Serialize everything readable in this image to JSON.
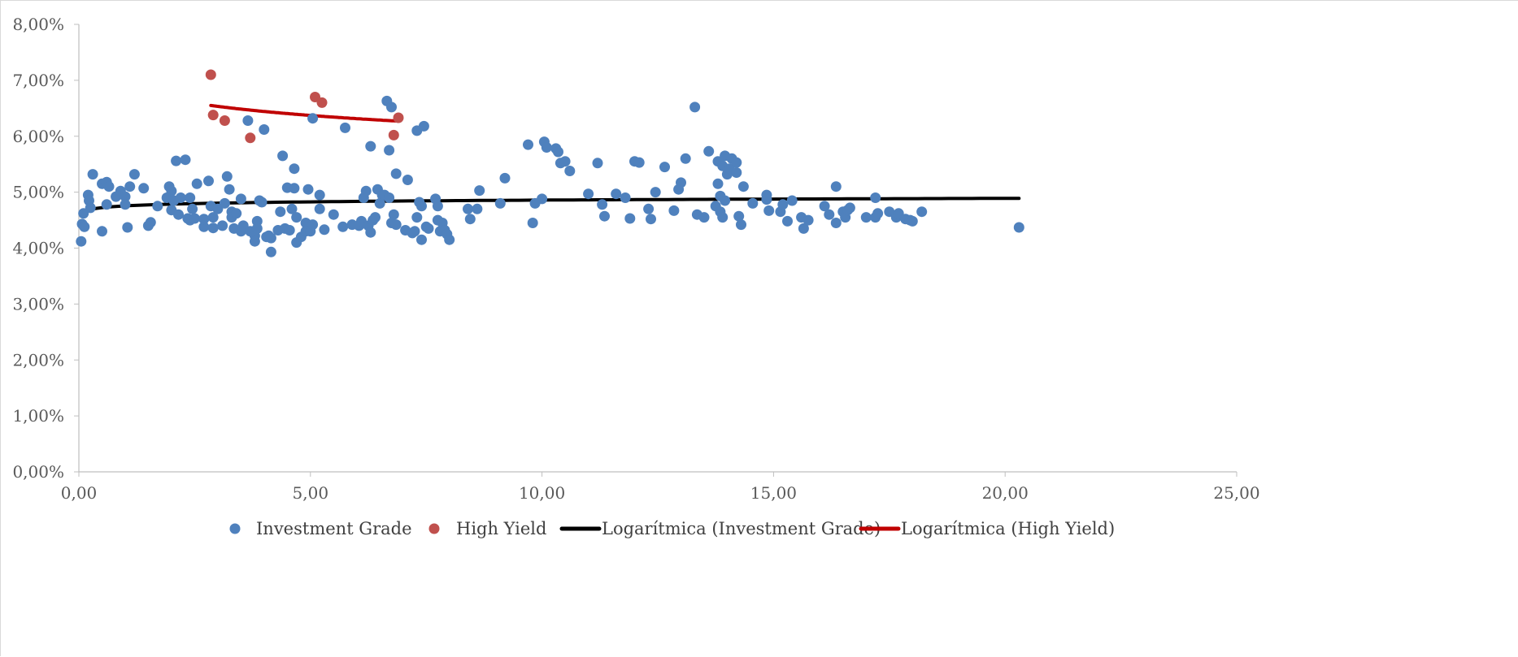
{
  "chart_data": {
    "type": "scatter",
    "title": "",
    "xlabel": "",
    "ylabel": "",
    "xlim": [
      0,
      25
    ],
    "ylim": [
      0,
      8
    ],
    "x_ticks": [
      "0,00",
      "5,00",
      "10,00",
      "15,00",
      "20,00",
      "25,00"
    ],
    "y_ticks": [
      "0,00%",
      "1,00%",
      "2,00%",
      "3,00%",
      "4,00%",
      "5,00%",
      "6,00%",
      "7,00%",
      "8,00%"
    ],
    "grid": false,
    "legend_position": "bottom",
    "series": [
      {
        "name": "Investment Grade",
        "color": "#4f81bd",
        "points": [
          [
            0.05,
            4.12
          ],
          [
            0.07,
            4.43
          ],
          [
            0.1,
            4.62
          ],
          [
            0.12,
            4.38
          ],
          [
            0.2,
            4.95
          ],
          [
            0.22,
            4.85
          ],
          [
            0.25,
            4.72
          ],
          [
            0.3,
            5.32
          ],
          [
            0.5,
            4.3
          ],
          [
            0.5,
            5.15
          ],
          [
            0.6,
            5.18
          ],
          [
            0.6,
            4.78
          ],
          [
            0.65,
            5.1
          ],
          [
            0.8,
            4.92
          ],
          [
            0.9,
            5.02
          ],
          [
            1.0,
            4.92
          ],
          [
            1.0,
            4.78
          ],
          [
            1.05,
            4.37
          ],
          [
            1.1,
            5.1
          ],
          [
            1.2,
            5.32
          ],
          [
            1.4,
            5.07
          ],
          [
            1.5,
            4.4
          ],
          [
            1.55,
            4.46
          ],
          [
            1.7,
            4.75
          ],
          [
            1.9,
            4.9
          ],
          [
            1.95,
            5.1
          ],
          [
            2.0,
            5.02
          ],
          [
            2.0,
            4.68
          ],
          [
            2.05,
            4.85
          ],
          [
            2.1,
            5.56
          ],
          [
            2.15,
            4.6
          ],
          [
            2.2,
            4.9
          ],
          [
            2.3,
            5.58
          ],
          [
            2.35,
            4.53
          ],
          [
            2.4,
            4.5
          ],
          [
            2.4,
            4.9
          ],
          [
            2.45,
            4.7
          ],
          [
            2.5,
            4.53
          ],
          [
            2.55,
            5.15
          ],
          [
            2.7,
            4.38
          ],
          [
            2.7,
            4.52
          ],
          [
            2.8,
            5.2
          ],
          [
            2.85,
            4.75
          ],
          [
            2.9,
            4.36
          ],
          [
            2.9,
            4.55
          ],
          [
            3.0,
            4.7
          ],
          [
            3.1,
            4.4
          ],
          [
            3.15,
            4.8
          ],
          [
            3.2,
            5.28
          ],
          [
            3.25,
            5.05
          ],
          [
            3.3,
            4.65
          ],
          [
            3.3,
            4.55
          ],
          [
            3.35,
            4.35
          ],
          [
            3.4,
            4.62
          ],
          [
            3.5,
            4.3
          ],
          [
            3.5,
            4.88
          ],
          [
            3.55,
            4.4
          ],
          [
            3.65,
            6.28
          ],
          [
            3.7,
            4.3
          ],
          [
            3.8,
            4.22
          ],
          [
            3.8,
            4.12
          ],
          [
            3.85,
            4.48
          ],
          [
            3.85,
            4.35
          ],
          [
            3.9,
            4.85
          ],
          [
            3.95,
            4.82
          ],
          [
            4.0,
            6.12
          ],
          [
            4.05,
            4.2
          ],
          [
            4.1,
            4.22
          ],
          [
            4.15,
            4.18
          ],
          [
            4.15,
            3.93
          ],
          [
            4.3,
            4.32
          ],
          [
            4.35,
            4.65
          ],
          [
            4.4,
            5.65
          ],
          [
            4.45,
            4.35
          ],
          [
            4.5,
            5.08
          ],
          [
            4.55,
            4.32
          ],
          [
            4.6,
            4.7
          ],
          [
            4.65,
            5.42
          ],
          [
            4.65,
            5.07
          ],
          [
            4.7,
            4.55
          ],
          [
            4.7,
            4.1
          ],
          [
            4.8,
            4.2
          ],
          [
            4.9,
            4.45
          ],
          [
            4.9,
            4.3
          ],
          [
            4.95,
            5.05
          ],
          [
            5.0,
            4.3
          ],
          [
            5.05,
            4.42
          ],
          [
            5.05,
            6.32
          ],
          [
            5.2,
            4.7
          ],
          [
            5.2,
            4.95
          ],
          [
            5.3,
            4.33
          ],
          [
            5.5,
            4.6
          ],
          [
            5.7,
            4.38
          ],
          [
            5.75,
            6.15
          ],
          [
            5.9,
            4.42
          ],
          [
            6.05,
            4.4
          ],
          [
            6.1,
            4.48
          ],
          [
            6.15,
            4.9
          ],
          [
            6.2,
            5.02
          ],
          [
            6.25,
            4.4
          ],
          [
            6.3,
            4.28
          ],
          [
            6.3,
            5.82
          ],
          [
            6.35,
            4.5
          ],
          [
            6.4,
            4.55
          ],
          [
            6.45,
            5.05
          ],
          [
            6.5,
            4.8
          ],
          [
            6.55,
            4.95
          ],
          [
            6.6,
            4.95
          ],
          [
            6.65,
            6.63
          ],
          [
            6.7,
            4.9
          ],
          [
            6.7,
            5.75
          ],
          [
            6.75,
            4.45
          ],
          [
            6.75,
            6.52
          ],
          [
            6.8,
            4.6
          ],
          [
            6.85,
            4.42
          ],
          [
            6.85,
            5.33
          ],
          [
            7.05,
            4.32
          ],
          [
            7.1,
            5.22
          ],
          [
            7.2,
            4.27
          ],
          [
            7.25,
            4.3
          ],
          [
            7.3,
            4.55
          ],
          [
            7.3,
            6.1
          ],
          [
            7.35,
            4.82
          ],
          [
            7.4,
            4.75
          ],
          [
            7.4,
            4.15
          ],
          [
            7.45,
            6.18
          ],
          [
            7.5,
            4.38
          ],
          [
            7.55,
            4.35
          ],
          [
            7.7,
            4.88
          ],
          [
            7.75,
            4.75
          ],
          [
            7.75,
            4.5
          ],
          [
            7.8,
            4.3
          ],
          [
            7.85,
            4.45
          ],
          [
            7.9,
            4.32
          ],
          [
            7.95,
            4.25
          ],
          [
            8.0,
            4.15
          ],
          [
            8.4,
            4.7
          ],
          [
            8.45,
            4.52
          ],
          [
            8.6,
            4.7
          ],
          [
            8.65,
            5.03
          ],
          [
            9.1,
            4.8
          ],
          [
            9.2,
            5.25
          ],
          [
            9.7,
            5.85
          ],
          [
            9.8,
            4.45
          ],
          [
            9.85,
            4.8
          ],
          [
            10.0,
            4.88
          ],
          [
            10.05,
            5.9
          ],
          [
            10.1,
            5.8
          ],
          [
            10.3,
            5.78
          ],
          [
            10.35,
            5.72
          ],
          [
            10.4,
            5.52
          ],
          [
            10.5,
            5.55
          ],
          [
            10.6,
            5.38
          ],
          [
            11.0,
            4.97
          ],
          [
            11.2,
            5.52
          ],
          [
            11.3,
            4.78
          ],
          [
            11.35,
            4.57
          ],
          [
            11.6,
            4.97
          ],
          [
            11.8,
            4.9
          ],
          [
            11.9,
            4.53
          ],
          [
            12.0,
            5.55
          ],
          [
            12.1,
            5.53
          ],
          [
            12.3,
            4.7
          ],
          [
            12.35,
            4.52
          ],
          [
            12.45,
            5.0
          ],
          [
            12.65,
            5.45
          ],
          [
            12.85,
            4.67
          ],
          [
            12.95,
            5.05
          ],
          [
            13.0,
            5.17
          ],
          [
            13.1,
            5.6
          ],
          [
            13.3,
            6.52
          ],
          [
            13.35,
            4.6
          ],
          [
            13.5,
            4.55
          ],
          [
            13.6,
            5.73
          ],
          [
            13.75,
            4.75
          ],
          [
            13.8,
            5.15
          ],
          [
            13.8,
            5.55
          ],
          [
            13.85,
            4.93
          ],
          [
            13.85,
            4.65
          ],
          [
            13.9,
            5.47
          ],
          [
            13.9,
            4.55
          ],
          [
            13.95,
            5.65
          ],
          [
            13.95,
            4.85
          ],
          [
            14.0,
            5.32
          ],
          [
            14.05,
            5.42
          ],
          [
            14.1,
            5.6
          ],
          [
            14.2,
            5.35
          ],
          [
            14.2,
            5.53
          ],
          [
            14.25,
            4.57
          ],
          [
            14.3,
            4.42
          ],
          [
            14.35,
            5.1
          ],
          [
            14.55,
            4.8
          ],
          [
            14.85,
            4.95
          ],
          [
            14.85,
            4.87
          ],
          [
            14.9,
            4.67
          ],
          [
            15.15,
            4.65
          ],
          [
            15.2,
            4.78
          ],
          [
            15.3,
            4.48
          ],
          [
            15.4,
            4.85
          ],
          [
            15.6,
            4.55
          ],
          [
            15.65,
            4.35
          ],
          [
            15.75,
            4.5
          ],
          [
            16.1,
            4.75
          ],
          [
            16.2,
            4.6
          ],
          [
            16.35,
            4.45
          ],
          [
            16.35,
            5.1
          ],
          [
            16.5,
            4.65
          ],
          [
            16.55,
            4.55
          ],
          [
            16.6,
            4.68
          ],
          [
            16.65,
            4.72
          ],
          [
            17.0,
            4.55
          ],
          [
            17.2,
            4.9
          ],
          [
            17.2,
            4.55
          ],
          [
            17.25,
            4.62
          ],
          [
            17.5,
            4.65
          ],
          [
            17.65,
            4.55
          ],
          [
            17.7,
            4.62
          ],
          [
            17.85,
            4.52
          ],
          [
            17.95,
            4.5
          ],
          [
            18.0,
            4.48
          ],
          [
            18.2,
            4.65
          ],
          [
            20.3,
            4.37
          ]
        ]
      },
      {
        "name": "High Yield",
        "color": "#c0504d",
        "points": [
          [
            2.85,
            7.1
          ],
          [
            2.9,
            6.38
          ],
          [
            3.15,
            6.28
          ],
          [
            3.7,
            5.97
          ],
          [
            5.1,
            6.7
          ],
          [
            5.25,
            6.6
          ],
          [
            6.8,
            6.02
          ],
          [
            6.9,
            6.33
          ]
        ]
      },
      {
        "name": "Logarítmica (Investment Grade)",
        "color": "#000000",
        "type": "line",
        "x_range": [
          0.05,
          20.3
        ],
        "y_start": 4.62,
        "y_end": 4.89
      },
      {
        "name": "Logarítmica (High Yield)",
        "color": "#c00000",
        "type": "line",
        "x_range": [
          2.85,
          6.9
        ],
        "y_start": 6.55,
        "y_end": 6.27
      }
    ]
  }
}
